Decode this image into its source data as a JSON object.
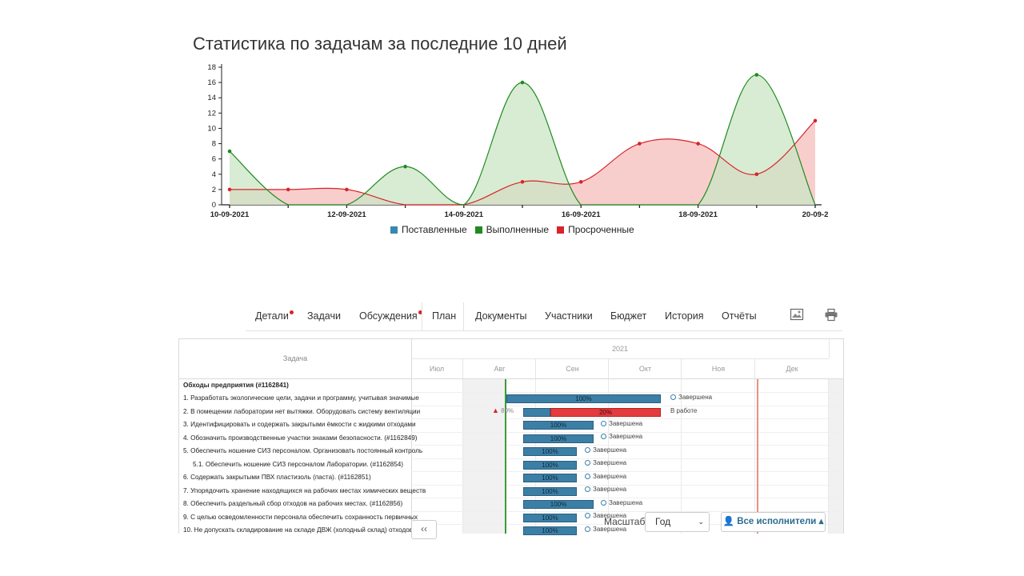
{
  "chart": {
    "title": "Статистика по задачам за последние 10 дней"
  },
  "chart_data": {
    "type": "area",
    "title": "Статистика по задачам за последние 10 дней",
    "x": [
      "10-09-2021",
      "11-09-2021",
      "12-09-2021",
      "13-09-2021",
      "14-09-2021",
      "15-09-2021",
      "16-09-2021",
      "17-09-2021",
      "18-09-2021",
      "19-09-2021",
      "20-09-2021"
    ],
    "x_tick_labels": [
      "10-09-2021",
      "12-09-2021",
      "14-09-2021",
      "16-09-2021",
      "18-09-2021",
      "20-09-2"
    ],
    "y_ticks": [
      "0",
      "2",
      "4",
      "6",
      "8",
      "10",
      "12",
      "14",
      "16",
      "18"
    ],
    "ylim": [
      0,
      18
    ],
    "grid": false,
    "legend_position": "bottom",
    "series": [
      {
        "name": "Поставленные",
        "color": "#3a87ad",
        "values": [
          0,
          0,
          0,
          0,
          0,
          0,
          0,
          0,
          0,
          0,
          0
        ]
      },
      {
        "name": "Выполненные",
        "color": "#1f8a1f",
        "fill": "#c9e6c4",
        "values": [
          7,
          0,
          0,
          5,
          0,
          16,
          0,
          0,
          0,
          17,
          0
        ]
      },
      {
        "name": "Просроченные",
        "color": "#d9232a",
        "fill": "#f7c6c4",
        "values": [
          2,
          2,
          2,
          0,
          0,
          3,
          3,
          8,
          8,
          4,
          11
        ]
      }
    ]
  },
  "tabs": {
    "items": [
      {
        "label": "Детали",
        "dot": true
      },
      {
        "label": "Задачи",
        "dot": false
      },
      {
        "label": "Обсуждения",
        "dot": true
      },
      {
        "label": "План",
        "dot": false
      },
      {
        "label": "Документы",
        "dot": false
      },
      {
        "label": "Участники",
        "dot": false
      },
      {
        "label": "Бюджет",
        "dot": false
      },
      {
        "label": "История",
        "dot": false
      },
      {
        "label": "Отчёты",
        "dot": false
      }
    ],
    "image_icon": "image-icon",
    "print_icon": "print-icon"
  },
  "gantt": {
    "task_header": "Задача",
    "year": "2021",
    "months": [
      "Июл",
      "Авг",
      "Сен",
      "Окт",
      "Ноя",
      "Дек"
    ],
    "rows": [
      {
        "title": "Обходы предприятия (#1162841)",
        "bold": true,
        "indent": false
      },
      {
        "title": "1. Разработать экологические цели, задачи и программу, учитывая значимые",
        "bold": false,
        "indent": false
      },
      {
        "title": "2. В помещении лаборатории нет вытяжки. Оборудовать систему вентиляции",
        "bold": false,
        "indent": false
      },
      {
        "title": "3. Идентифицировать и содержать закрытыми ёмкости с жидкими отходами",
        "bold": false,
        "indent": false
      },
      {
        "title": "4. Обозначить производственные участки знаками безопасности. (#1162849)",
        "bold": false,
        "indent": false
      },
      {
        "title": "5. Обеспечить ношение СИЗ персоналом. Организовать постоянный контроль",
        "bold": false,
        "indent": false
      },
      {
        "title": "5.1. Обеспечить ношение СИЗ персоналом Лаборатории. (#1162854)",
        "bold": false,
        "indent": true
      },
      {
        "title": "6. Содержать закрытыми ПВХ пластизоль (паста). (#1162851)",
        "bold": false,
        "indent": false
      },
      {
        "title": "7. Упорядочить хранение находящихся на рабочих местах химических веществ",
        "bold": false,
        "indent": false
      },
      {
        "title": "8. Обеспечить раздельный сбор отходов на рабочих местах. (#1162856)",
        "bold": false,
        "indent": false
      },
      {
        "title": "9. С целью осведомленности персонала обеспечить сохранность первичных",
        "bold": false,
        "indent": false
      },
      {
        "title": "10. Не допускать складирование на складе ДВЖ (холодный склад) отходов",
        "bold": false,
        "indent": false
      }
    ],
    "bars": [
      {
        "row": 1,
        "progress": "100%",
        "status": "Завершена"
      },
      {
        "row": 2,
        "progress": "80%",
        "overdue": "20%",
        "status": "В работе"
      },
      {
        "row": 3,
        "progress": "100%",
        "status": "Завершена"
      },
      {
        "row": 4,
        "progress": "100%",
        "status": "Завершена"
      },
      {
        "row": 5,
        "progress": "100%",
        "status": "Завершена"
      },
      {
        "row": 6,
        "progress": "100%",
        "status": "Завершена"
      },
      {
        "row": 7,
        "progress": "100%",
        "status": "Завершена"
      },
      {
        "row": 8,
        "progress": "100%",
        "status": "Завершена"
      },
      {
        "row": 9,
        "progress": "100%",
        "status": "Завершена"
      },
      {
        "row": 10,
        "progress": "100%",
        "status": "Завершена"
      },
      {
        "row": 11,
        "progress": "100%",
        "status": "Завершена"
      }
    ]
  },
  "controls": {
    "scroll_left": "‹‹",
    "scale_label": "Масштаб",
    "scale_value": "Год",
    "executors_button": "Все исполнители"
  }
}
